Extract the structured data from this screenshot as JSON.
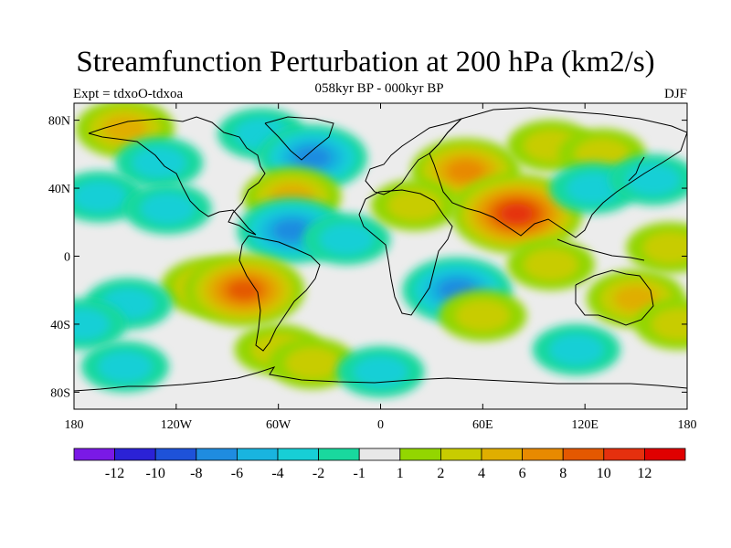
{
  "map": {
    "title": "Streamfunction Perturbation at 200 hPa (km2/s)",
    "subtitle": "058kyr BP - 000kyr BP",
    "left_label": "Expt = tdxoO-tdxoa",
    "right_label": "DJF",
    "lat_ticks": [
      {
        "value": 80,
        "label": "80N"
      },
      {
        "value": 40,
        "label": "40N"
      },
      {
        "value": 0,
        "label": "0"
      },
      {
        "value": -40,
        "label": "40S"
      },
      {
        "value": -80,
        "label": "80S"
      }
    ],
    "lon_ticks": [
      {
        "value": -180,
        "label": "180"
      },
      {
        "value": -120,
        "label": "120W"
      },
      {
        "value": -60,
        "label": "60W"
      },
      {
        "value": 0,
        "label": "0"
      },
      {
        "value": 60,
        "label": "60E"
      },
      {
        "value": 120,
        "label": "120E"
      },
      {
        "value": 180,
        "label": "180"
      }
    ],
    "lon_range": [
      -180,
      180
    ],
    "lat_range": [
      -90,
      90
    ],
    "background_color": "#ececec",
    "anomalies": [
      {
        "lon": -150,
        "lat": 75,
        "value": 4
      },
      {
        "lon": -130,
        "lat": 55,
        "value": -2
      },
      {
        "lon": -165,
        "lat": 35,
        "value": -3
      },
      {
        "lon": -125,
        "lat": 28,
        "value": -3
      },
      {
        "lon": -70,
        "lat": 72,
        "value": -2
      },
      {
        "lon": -40,
        "lat": 58,
        "value": -6
      },
      {
        "lon": -52,
        "lat": 35,
        "value": 4
      },
      {
        "lon": -52,
        "lat": 15,
        "value": -6
      },
      {
        "lon": -100,
        "lat": -18,
        "value": 4
      },
      {
        "lon": -80,
        "lat": -20,
        "value": 8
      },
      {
        "lon": -148,
        "lat": -28,
        "value": -2
      },
      {
        "lon": -175,
        "lat": -40,
        "value": -2
      },
      {
        "lon": -150,
        "lat": -65,
        "value": -2
      },
      {
        "lon": -60,
        "lat": -55,
        "value": 2
      },
      {
        "lon": -40,
        "lat": -63,
        "value": 2
      },
      {
        "lon": 0,
        "lat": -68,
        "value": -2
      },
      {
        "lon": -20,
        "lat": 10,
        "value": -2
      },
      {
        "lon": 50,
        "lat": 50,
        "value": 6
      },
      {
        "lon": 80,
        "lat": 25,
        "value": 10
      },
      {
        "lon": 20,
        "lat": 30,
        "value": 2
      },
      {
        "lon": 100,
        "lat": 65,
        "value": 2
      },
      {
        "lon": 130,
        "lat": 60,
        "value": 2
      },
      {
        "lon": 125,
        "lat": 40,
        "value": -2
      },
      {
        "lon": 160,
        "lat": 45,
        "value": -2
      },
      {
        "lon": 45,
        "lat": -20,
        "value": -6
      },
      {
        "lon": 60,
        "lat": -35,
        "value": 2
      },
      {
        "lon": 115,
        "lat": -55,
        "value": -2
      },
      {
        "lon": 150,
        "lat": -25,
        "value": 4
      },
      {
        "lon": 175,
        "lat": -40,
        "value": 2
      },
      {
        "lon": 170,
        "lat": 5,
        "value": 2
      },
      {
        "lon": 100,
        "lat": -5,
        "value": 2
      }
    ],
    "colorbar": {
      "labels": [
        "-12",
        "-10",
        "-8",
        "-6",
        "-4",
        "-2",
        "-1",
        "1",
        "2",
        "4",
        "6",
        "8",
        "10",
        "12"
      ],
      "colors": [
        "#7a19e6",
        "#2b22d6",
        "#1e52d9",
        "#1f8ce0",
        "#19b4df",
        "#17cfd6",
        "#19d89e",
        "#e8e8e8",
        "#93d600",
        "#c8cc00",
        "#e0ae00",
        "#e88a00",
        "#e45800",
        "#e5300e",
        "#e00000"
      ]
    }
  }
}
